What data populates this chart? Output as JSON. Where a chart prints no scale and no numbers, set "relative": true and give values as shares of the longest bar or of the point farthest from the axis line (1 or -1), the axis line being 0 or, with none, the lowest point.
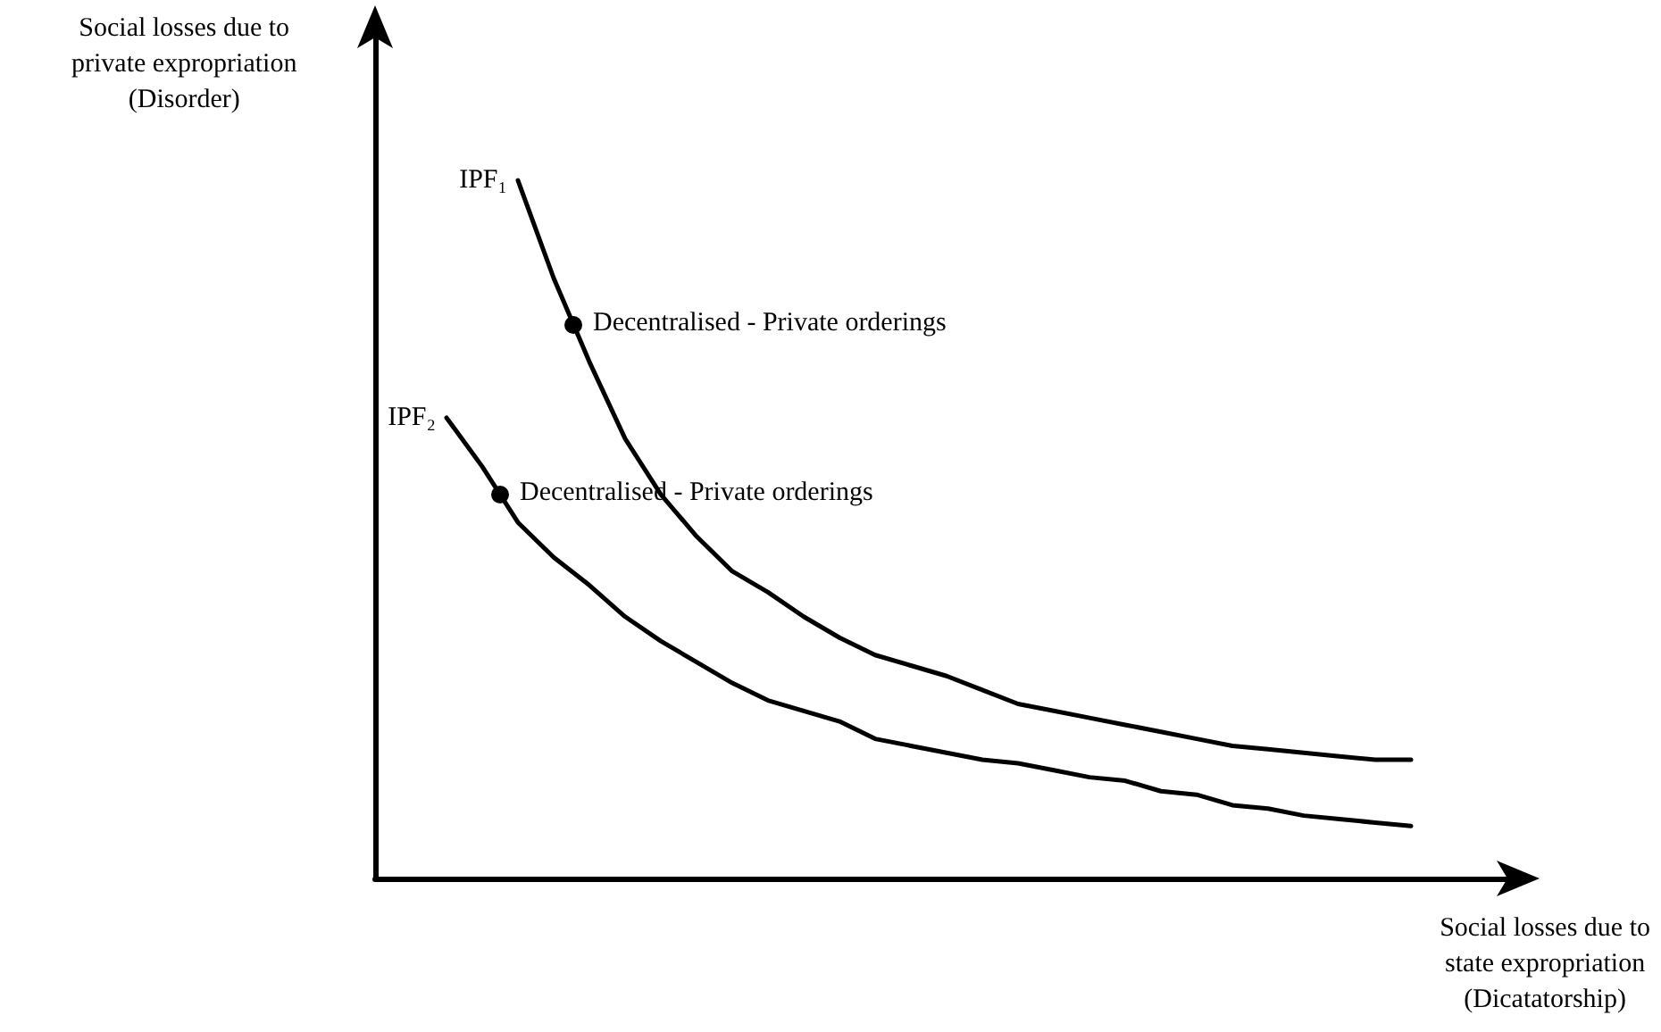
{
  "chart_data": {
    "type": "line",
    "relative": true,
    "xlabel": "Social losses due to\nstate expropriation\n(Dicatatorship)",
    "ylabel": "Social losses due to\nprivate expropriation\n(Disorder)",
    "categories": [
      null,
      null,
      null,
      null,
      null,
      null,
      null,
      null,
      null,
      null,
      null,
      null,
      null,
      null,
      null,
      null,
      null,
      null,
      null,
      null,
      null,
      null,
      null,
      null,
      null,
      null,
      null,
      null,
      null,
      null,
      null,
      null,
      null
    ],
    "series": [
      {
        "name": "IPF₁",
        "color": "#000000",
        "values": [
          null,
          null,
          null,
          null,
          1,
          0.86,
          0.74,
          0.63,
          0.55,
          0.49,
          0.44,
          0.41,
          0.375,
          0.345,
          0.32,
          0.305,
          0.29,
          0.27,
          0.25,
          0.24,
          0.23,
          0.22,
          0.21,
          0.2,
          0.19,
          0.185,
          0.18,
          0.175,
          0.17,
          0.17,
          null,
          null,
          null
        ]
      },
      {
        "name": "IPF₂",
        "color": "#000000",
        "values": [
          null,
          null,
          0.66,
          0.59,
          0.51,
          0.46,
          0.42,
          0.375,
          0.34,
          0.31,
          0.28,
          0.255,
          0.24,
          0.225,
          0.2,
          0.19,
          0.18,
          0.17,
          0.165,
          0.155,
          0.145,
          0.14,
          0.125,
          0.12,
          0.105,
          0.1,
          0.09,
          0.085,
          0.08,
          0.075,
          null,
          null,
          null
        ]
      }
    ],
    "annotations": [
      "Decentralised - Private orderings",
      "Decentralised - Private orderings"
    ]
  }
}
